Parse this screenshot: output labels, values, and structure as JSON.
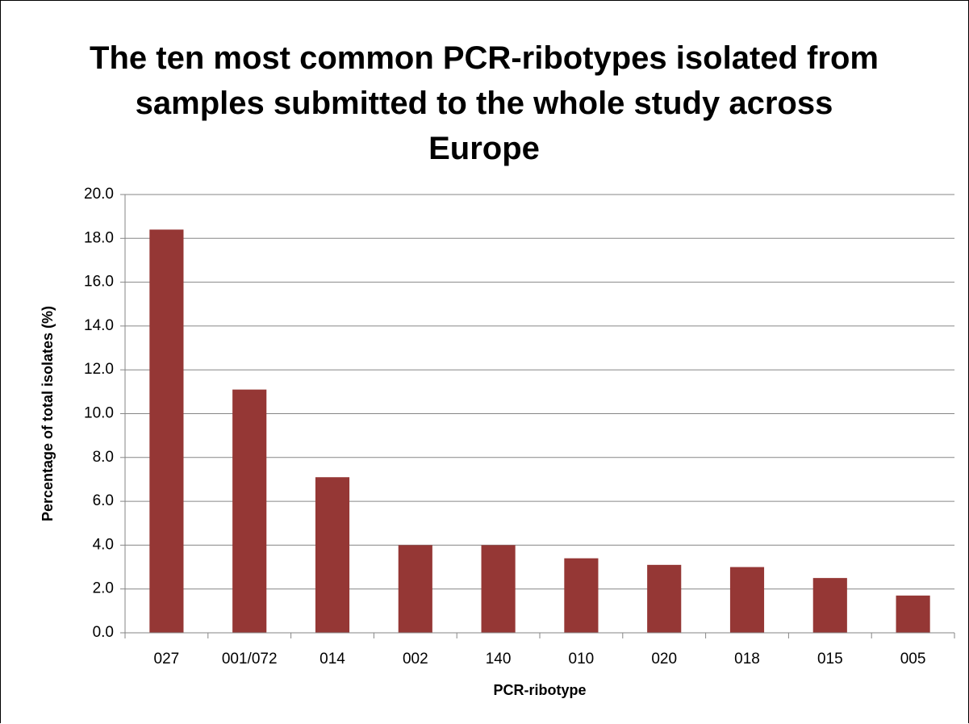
{
  "chart_data": {
    "type": "bar",
    "title": "The ten most common PCR-ribotypes isolated from samples submitted to the whole study across Europe",
    "x_label": "PCR-ribotype",
    "y_label": "Percentage of total isolates (%)",
    "categories": [
      "027",
      "001/072",
      "014",
      "002",
      "140",
      "010",
      "020",
      "018",
      "015",
      "005"
    ],
    "values": [
      18.4,
      11.1,
      7.1,
      4.0,
      4.0,
      3.4,
      3.1,
      3.0,
      2.5,
      1.7
    ],
    "color": "#953735",
    "ylim": [
      0,
      20
    ],
    "yticks": [
      {
        "value": 0,
        "label": "0.0"
      },
      {
        "value": 2,
        "label": "2.0"
      },
      {
        "value": 4,
        "label": "4.0"
      },
      {
        "value": 6,
        "label": "6.0"
      },
      {
        "value": 8,
        "label": "8.0"
      },
      {
        "value": 10,
        "label": "10.0"
      },
      {
        "value": 12,
        "label": "12.0"
      },
      {
        "value": 14,
        "label": "14.0"
      },
      {
        "value": 16,
        "label": "16.0"
      },
      {
        "value": 18,
        "label": "18.0"
      },
      {
        "value": 20,
        "label": "20.0"
      }
    ],
    "grid": true
  }
}
